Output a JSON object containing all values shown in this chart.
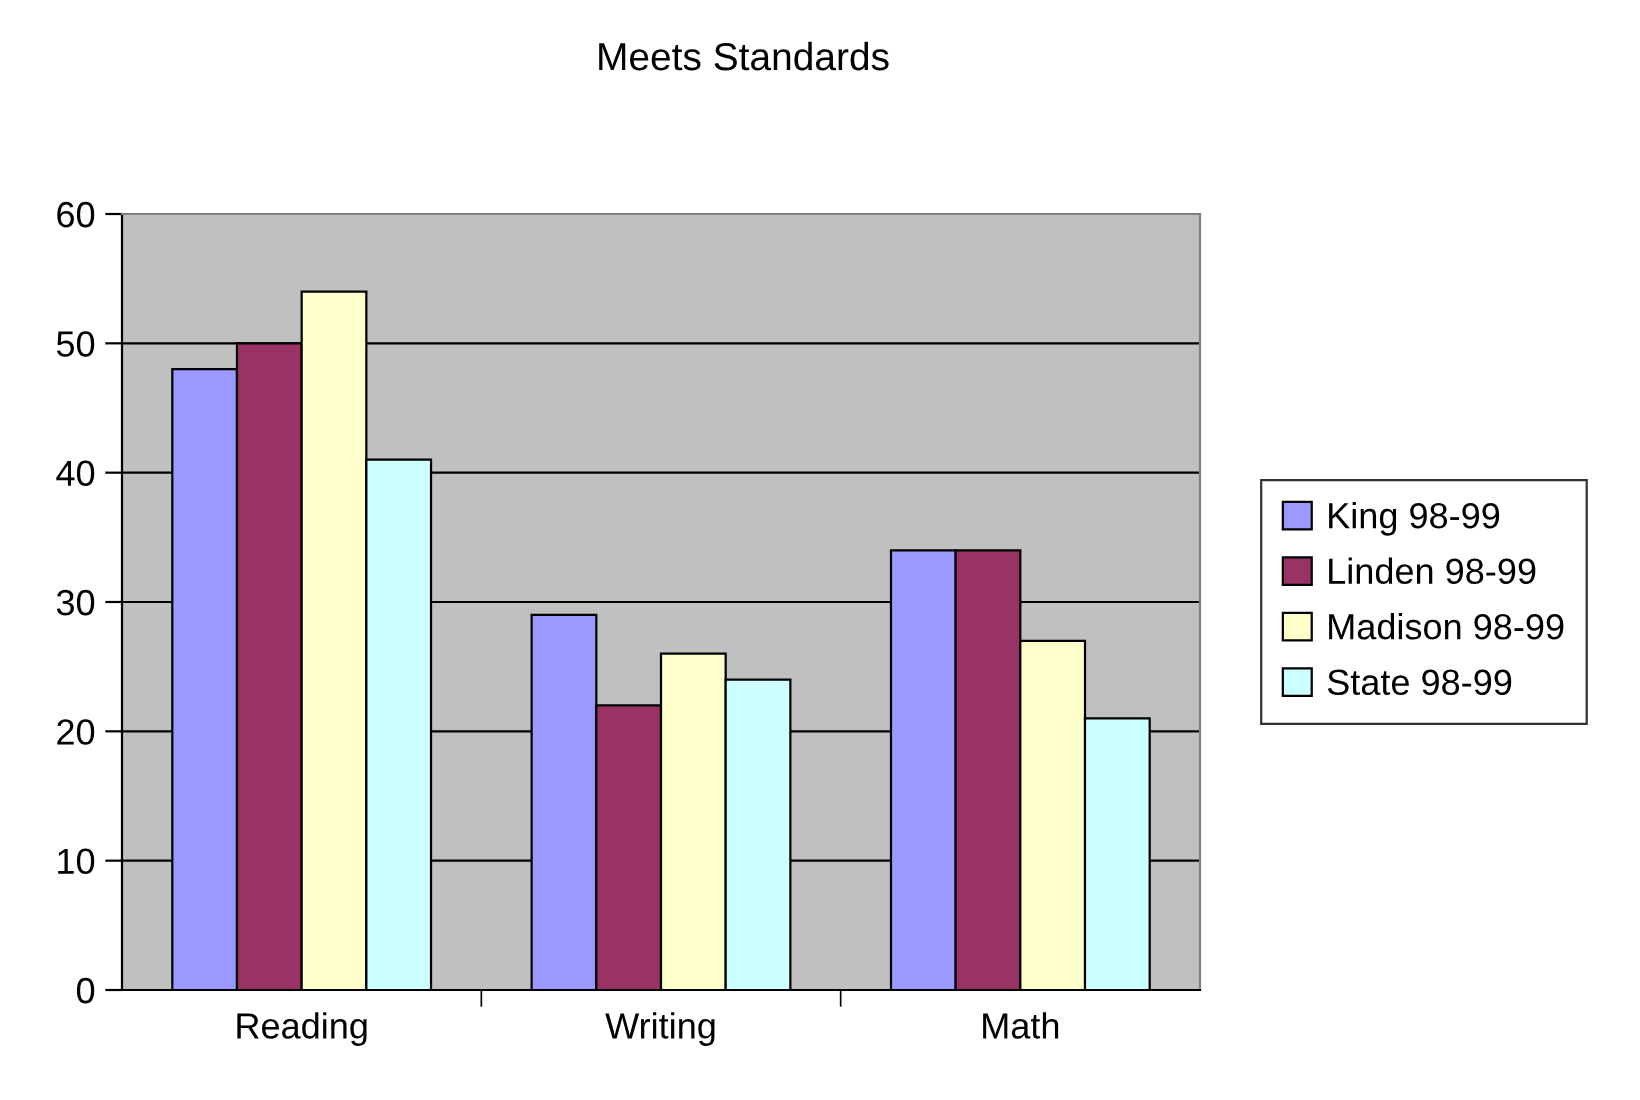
{
  "chart_data": {
    "type": "bar",
    "title": "Meets Standards",
    "categories": [
      "Reading",
      "Writing",
      "Math"
    ],
    "series": [
      {
        "name": "King 98-99",
        "color": "#9999ff",
        "values": [
          48,
          29,
          34
        ]
      },
      {
        "name": "Linden 98-99",
        "color": "#993366",
        "values": [
          50,
          22,
          34
        ]
      },
      {
        "name": "Madison 98-99",
        "color": "#ffffcc",
        "values": [
          54,
          26,
          27
        ]
      },
      {
        "name": "State 98-99",
        "color": "#ccffff",
        "values": [
          41,
          24,
          21
        ]
      }
    ],
    "ylim": [
      0,
      60
    ],
    "yticks": [
      0,
      10,
      20,
      30,
      40,
      50,
      60
    ],
    "grid": "y",
    "legend": "right"
  }
}
